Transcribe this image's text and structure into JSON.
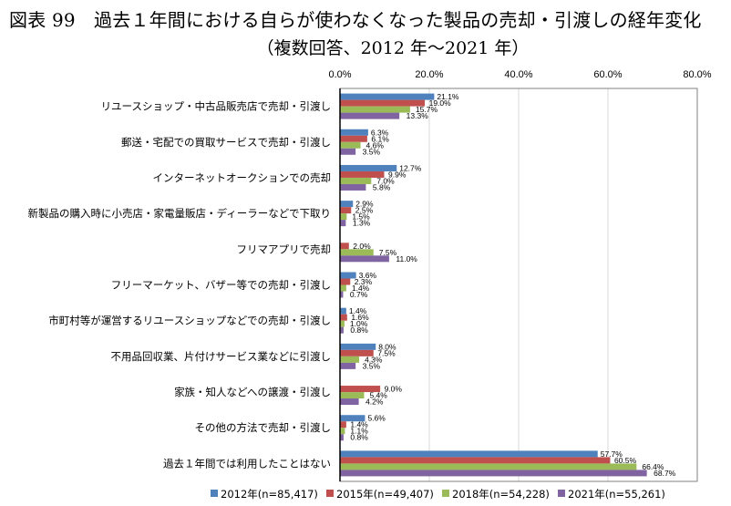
{
  "title": {
    "line1": "図表 99　過去１年間における自らが使わなくなった製品の売却・引渡しの経年変化",
    "line2": "（複数回答、2012 年～2021 年）"
  },
  "chart_data": {
    "type": "bar",
    "orientation": "horizontal",
    "title": "図表 99　過去１年間における自らが使わなくなった製品の売却・引渡しの経年変化",
    "subtitle": "（複数回答、2012 年～2021 年）",
    "xlabel": "",
    "ylabel": "",
    "xlim": [
      0,
      80
    ],
    "x_ticks": [
      "0.0%",
      "20.0%",
      "40.0%",
      "60.0%",
      "80.0%"
    ],
    "x_tick_values": [
      0,
      20,
      40,
      60,
      80
    ],
    "grid": true,
    "legend_position": "bottom",
    "categories": [
      "リユースショップ・中古品販売店で売却・引渡し",
      "郵送・宅配での買取サービスで売却・引渡し",
      "インターネットオークションでの売却",
      "新製品の購入時に小売店・家電量販店・ディーラーなどで下取り",
      "フリマアプリで売却",
      "フリーマーケット、バザー等での売却・引渡し",
      "市町村等が運営するリユースショップなどでの売却・引渡し",
      "不用品回収業、片付けサービス業などに引渡し",
      "家族・知人などへの譲渡・引渡し",
      "その他の方法で売却・引渡し",
      "過去１年間では利用したことはない"
    ],
    "series": [
      {
        "name": "2012年(n=85,417)",
        "color": "#4F81BD",
        "values": [
          21.1,
          6.3,
          12.7,
          2.9,
          null,
          3.6,
          1.4,
          8.0,
          null,
          5.6,
          57.7
        ],
        "labels": [
          "21.1%",
          "6.3%",
          "12.7%",
          "2.9%",
          null,
          "3.6%",
          "1.4%",
          "8.0%",
          null,
          "5.6%",
          "57.7%"
        ]
      },
      {
        "name": "2015年(n=49,407)",
        "color": "#C0504D",
        "values": [
          19.0,
          6.1,
          9.9,
          2.5,
          2.0,
          2.3,
          1.6,
          7.5,
          9.0,
          1.4,
          60.5
        ],
        "labels": [
          "19.0%",
          "6.1%",
          "9.9%",
          "2.5%",
          "2.0%",
          "2.3%",
          "1.6%",
          "7.5%",
          "9.0%",
          "1.4%",
          "60.5%"
        ]
      },
      {
        "name": "2018年(n=54,228)",
        "color": "#9BBB59",
        "values": [
          15.7,
          4.6,
          7.0,
          1.5,
          7.5,
          1.4,
          1.0,
          4.3,
          5.4,
          1.1,
          66.4
        ],
        "labels": [
          "15.7%",
          "4.6%",
          "7.0%",
          "1.5%",
          "7.5%",
          "1.4%",
          "1.0%",
          "4.3%",
          "5.4%",
          "1.1%",
          "66.4%"
        ]
      },
      {
        "name": "2021年(n=55,261)",
        "color": "#8064A2",
        "values": [
          13.3,
          3.5,
          5.8,
          1.3,
          11.0,
          0.7,
          0.8,
          3.5,
          4.2,
          0.8,
          68.7
        ],
        "labels": [
          "13.3%",
          "3.5%",
          "5.8%",
          "1.3%",
          "11.0%",
          "0.7%",
          "0.8%",
          "3.5%",
          "4.2%",
          "0.8%",
          "68.7%"
        ]
      }
    ]
  }
}
